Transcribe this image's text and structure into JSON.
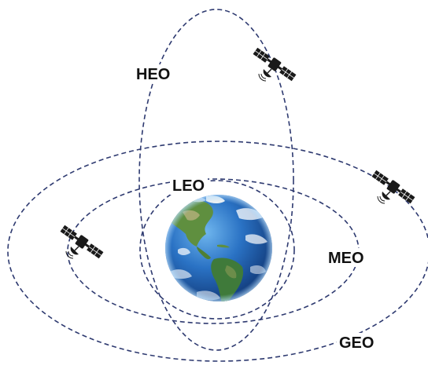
{
  "labels": {
    "heo": "HEO",
    "leo": "LEO",
    "meo": "MEO",
    "geo": "GEO"
  },
  "icons": {
    "earth": "earth-globe",
    "satellite": "satellite"
  },
  "colors": {
    "orbit": "#2e3a70",
    "label": "#111111",
    "ocean": "#1f5fb0",
    "land": "#3f7a3a",
    "satellite": "#1a1a1a"
  }
}
